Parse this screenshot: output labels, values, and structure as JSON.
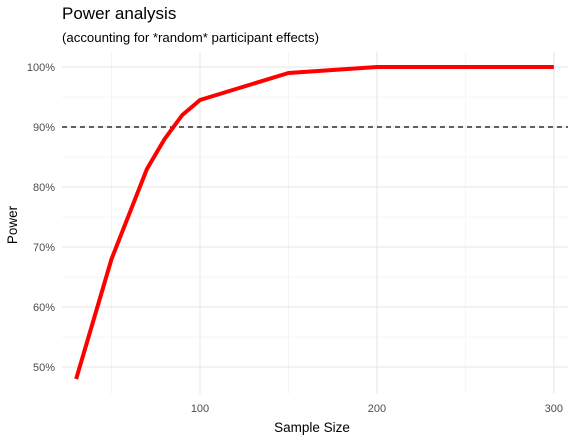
{
  "chart_data": {
    "type": "line",
    "title": "Power analysis",
    "subtitle": "(accounting for *random* participant effects)",
    "xlabel": "Sample Size",
    "ylabel": "Power",
    "xlim": [
      22,
      308
    ],
    "ylim": [
      0.455,
      1.025
    ],
    "x_ticks": [
      100,
      200,
      300
    ],
    "x_tick_labels": [
      "100",
      "200",
      "300"
    ],
    "x_minor_ticks": [
      50,
      150,
      250
    ],
    "y_ticks": [
      0.5,
      0.6,
      0.7,
      0.8,
      0.9,
      1.0
    ],
    "y_tick_labels": [
      "50%",
      "60%",
      "70%",
      "80%",
      "90%",
      "100%"
    ],
    "y_minor_ticks": [
      0.55,
      0.65,
      0.75,
      0.85,
      0.95
    ],
    "grid": true,
    "series": [
      {
        "color": "#ff0000",
        "x": [
          30,
          50,
          70,
          80,
          90,
          100,
          150,
          200,
          250,
          300
        ],
        "y": [
          0.48,
          0.68,
          0.83,
          0.88,
          0.92,
          0.945,
          0.99,
          1.0,
          1.0,
          1.0
        ]
      }
    ],
    "reference_line": {
      "y": 0.9,
      "style": "dashed",
      "color": "#000000"
    }
  }
}
